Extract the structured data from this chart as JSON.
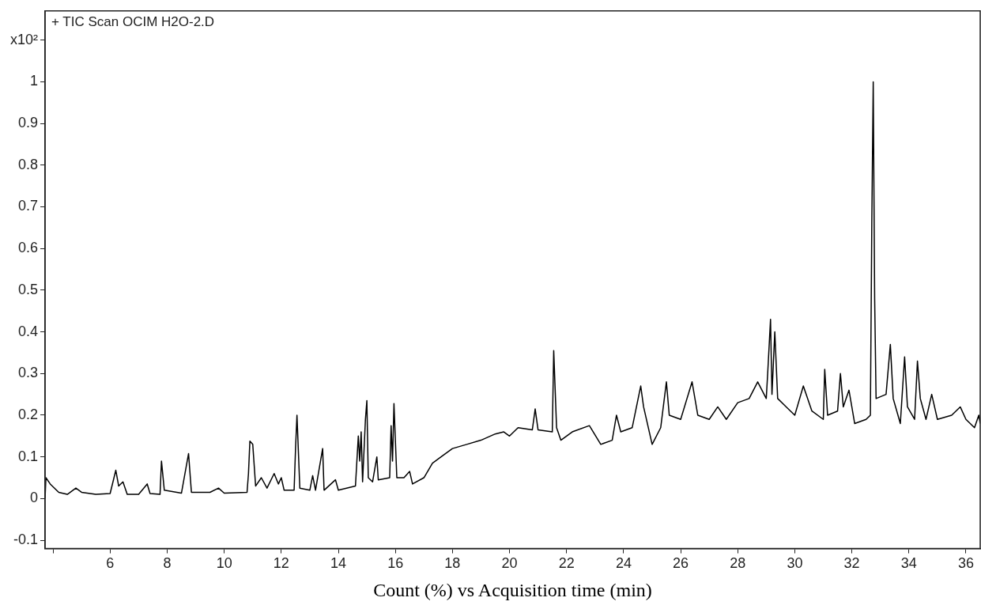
{
  "chart_data": {
    "type": "line",
    "title": "+ TIC Scan OCIM H2O-2.D",
    "xlabel": "Count (%) vs Acquisition time (min)",
    "x": [
      3.72,
      3.75,
      3.9,
      4.2,
      4.5,
      4.8,
      5.0,
      5.5,
      6.0,
      6.2,
      6.3,
      6.45,
      6.6,
      7.0,
      7.3,
      7.4,
      7.75,
      7.8,
      7.9,
      8.5,
      8.75,
      8.85,
      9.5,
      9.8,
      10.0,
      10.8,
      10.85,
      10.9,
      11.0,
      11.1,
      11.3,
      11.5,
      11.75,
      11.9,
      12.0,
      12.1,
      12.45,
      12.5,
      12.55,
      12.65,
      13.0,
      13.1,
      13.2,
      13.45,
      13.5,
      13.9,
      14.0,
      14.6,
      14.7,
      14.75,
      14.8,
      14.85,
      14.95,
      15.0,
      15.05,
      15.2,
      15.35,
      15.4,
      15.8,
      15.85,
      15.9,
      15.95,
      16.05,
      16.3,
      16.5,
      16.6,
      17.0,
      17.3,
      17.6,
      18.0,
      18.5,
      19.0,
      19.5,
      19.8,
      20.0,
      20.3,
      20.8,
      20.9,
      21.0,
      21.5,
      21.55,
      21.65,
      21.8,
      22.2,
      22.8,
      23.2,
      23.6,
      23.75,
      23.9,
      24.3,
      24.6,
      24.7,
      25.0,
      25.3,
      25.5,
      25.6,
      26.0,
      26.4,
      26.6,
      27.0,
      27.3,
      27.6,
      28.0,
      28.4,
      28.7,
      29.0,
      29.05,
      29.15,
      29.2,
      29.3,
      29.4,
      29.7,
      30.0,
      30.3,
      30.6,
      31.0,
      31.05,
      31.15,
      31.5,
      31.6,
      31.7,
      31.9,
      32.0,
      32.1,
      32.5,
      32.65,
      32.7,
      32.75,
      32.8,
      32.85,
      33.2,
      33.35,
      33.45,
      33.7,
      33.85,
      33.95,
      34.2,
      34.3,
      34.4,
      34.6,
      34.8,
      35.0,
      35.5,
      35.8,
      36.0,
      36.3,
      36.45,
      36.5
    ],
    "values": [
      0,
      0.05,
      0.035,
      0.015,
      0.01,
      0.025,
      0.015,
      0.01,
      0.012,
      0.068,
      0.03,
      0.04,
      0.01,
      0.01,
      0.035,
      0.012,
      0.01,
      0.09,
      0.02,
      0.013,
      0.108,
      0.015,
      0.015,
      0.025,
      0.013,
      0.015,
      0.06,
      0.138,
      0.13,
      0.03,
      0.05,
      0.025,
      0.06,
      0.035,
      0.05,
      0.02,
      0.02,
      0.12,
      0.2,
      0.025,
      0.02,
      0.055,
      0.02,
      0.12,
      0.02,
      0.045,
      0.02,
      0.03,
      0.15,
      0.09,
      0.16,
      0.04,
      0.19,
      0.235,
      0.05,
      0.04,
      0.1,
      0.045,
      0.05,
      0.175,
      0.09,
      0.228,
      0.05,
      0.05,
      0.065,
      0.035,
      0.05,
      0.085,
      0.1,
      0.12,
      0.13,
      0.14,
      0.155,
      0.16,
      0.15,
      0.17,
      0.165,
      0.215,
      0.165,
      0.16,
      0.355,
      0.17,
      0.14,
      0.16,
      0.175,
      0.13,
      0.14,
      0.2,
      0.16,
      0.17,
      0.27,
      0.22,
      0.13,
      0.17,
      0.28,
      0.2,
      0.19,
      0.28,
      0.2,
      0.19,
      0.22,
      0.19,
      0.23,
      0.24,
      0.28,
      0.24,
      0.3,
      0.43,
      0.25,
      0.4,
      0.24,
      0.22,
      0.2,
      0.27,
      0.21,
      0.19,
      0.31,
      0.2,
      0.21,
      0.3,
      0.22,
      0.26,
      0.22,
      0.18,
      0.19,
      0.2,
      0.66,
      1.0,
      0.48,
      0.24,
      0.25,
      0.37,
      0.24,
      0.18,
      0.34,
      0.22,
      0.19,
      0.33,
      0.24,
      0.19,
      0.25,
      0.19,
      0.2,
      0.22,
      0.19,
      0.17,
      0.2,
      0.18
    ],
    "color": "#000000",
    "xlim": [
      3.72,
      36.5
    ],
    "xticks": [
      {
        "value": 4,
        "label": null
      },
      6,
      8,
      10,
      12,
      14,
      16,
      18,
      20,
      22,
      24,
      26,
      28,
      30,
      32,
      34,
      36
    ],
    "ylim": [
      -0.12,
      1.17
    ],
    "yticks": [
      -0.1,
      0,
      0.1,
      0.2,
      0.3,
      0.4,
      0.5,
      0.6,
      0.7,
      0.8,
      0.9,
      1,
      {
        "value": 1.1,
        "label": "x10²"
      }
    ],
    "grid": false,
    "legend": false,
    "marker": "none",
    "line_style": "solid"
  }
}
